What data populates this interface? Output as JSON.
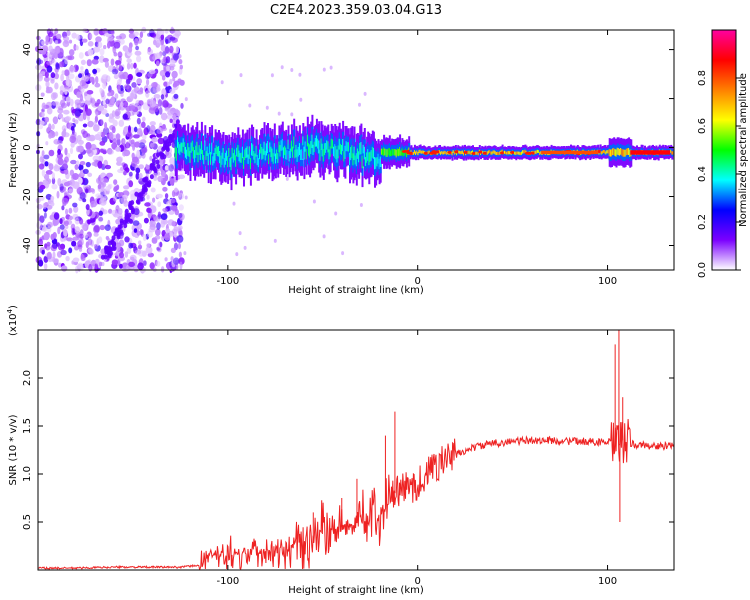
{
  "title": "C2E4.2023.359.03.04.G13",
  "chart_data": [
    {
      "type": "heatmap",
      "xlabel": "Height of straight line (km)",
      "ylabel": "Frequency (Hz)",
      "xlim": [
        -200,
        135
      ],
      "ylim": [
        -50,
        48
      ],
      "x_ticks": [
        -100,
        0,
        100
      ],
      "x_tick_labels": [
        "-100",
        "0",
        "100"
      ],
      "y_ticks": [
        -40,
        -20,
        0,
        20,
        40
      ],
      "y_tick_labels": [
        "-40",
        "-20",
        "0",
        "20",
        "40"
      ],
      "noise_region_x": [
        -200,
        -128
      ],
      "stripe_center_hz": -2,
      "colorbar": {
        "label": "Normalized spectral amplitude",
        "range": [
          0,
          1
        ],
        "ticks": [
          0.0,
          0.2,
          0.4,
          0.6,
          0.8
        ],
        "tick_labels": [
          "0.0",
          "0.2",
          "0.4",
          "0.6",
          "0.8"
        ],
        "colormap": [
          "#ffffff",
          "#7b00ff",
          "#0000ff",
          "#00ffff",
          "#00ff00",
          "#ffff00",
          "#ff8000",
          "#ff0000",
          "#ff00a0"
        ]
      }
    },
    {
      "type": "line",
      "color": "#ee2222",
      "xlabel": "Height of straight line (km)",
      "ylabel": "SNR (10 * v/v)",
      "y_multiplier": "(x10",
      "y_multiplier_exp": "4",
      "y_multiplier_close": ")",
      "xlim": [
        -200,
        135
      ],
      "ylim": [
        0,
        2.5
      ],
      "x_ticks": [
        -100,
        0,
        100
      ],
      "x_tick_labels": [
        "-100",
        "0",
        "100"
      ],
      "y_ticks": [
        0.5,
        1.0,
        1.5,
        2.0
      ],
      "y_tick_labels": [
        "0.5",
        "1.0",
        "1.5",
        "2.0"
      ],
      "x": [
        -200,
        -180,
        -160,
        -140,
        -125,
        -115,
        -110,
        -100,
        -90,
        -80,
        -70,
        -60,
        -50,
        -40,
        -30,
        -20,
        -15,
        -12,
        -8,
        -5,
        0,
        5,
        10,
        20,
        30,
        40,
        50,
        60,
        70,
        80,
        90,
        100,
        103,
        105,
        106,
        107,
        108,
        110,
        115,
        120,
        125,
        130,
        135
      ],
      "y": [
        0.02,
        0.02,
        0.03,
        0.03,
        0.03,
        0.05,
        0.15,
        0.15,
        0.18,
        0.2,
        0.25,
        0.3,
        0.4,
        0.45,
        0.5,
        0.55,
        0.7,
        0.8,
        0.85,
        0.85,
        0.9,
        1.0,
        1.1,
        1.2,
        1.28,
        1.32,
        1.34,
        1.35,
        1.35,
        1.34,
        1.34,
        1.33,
        1.32,
        1.3,
        1.3,
        1.32,
        1.35,
        1.33,
        1.3,
        1.3,
        1.29,
        1.29,
        1.29
      ],
      "spikes": [
        {
          "x": -12,
          "y": 1.65
        },
        {
          "x": -17,
          "y": 1.4
        },
        {
          "x": -32,
          "y": 0.95
        },
        {
          "x": -40,
          "y": 0.75
        },
        {
          "x": -55,
          "y": 0.6
        },
        {
          "x": 104,
          "y": 2.35
        },
        {
          "x": 106,
          "y": 2.55
        },
        {
          "x": 106.5,
          "y": 0.5
        },
        {
          "x": 108,
          "y": 1.8
        }
      ]
    }
  ]
}
